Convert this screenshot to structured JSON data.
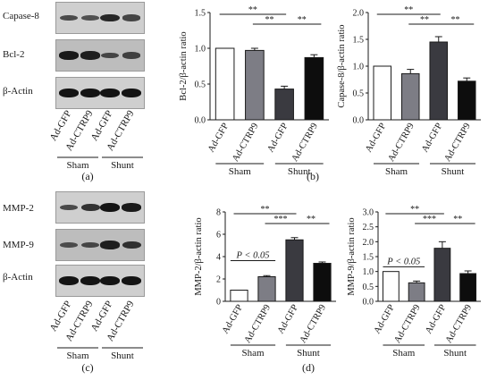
{
  "panel_labels": {
    "a": "(a)",
    "b": "(b)",
    "c": "(c)",
    "d": "(d)"
  },
  "blot_top": {
    "rows": [
      {
        "label": "Capase-8",
        "bands": [
          0.55,
          0.5,
          0.85,
          0.6
        ]
      },
      {
        "label": "Bcl-2",
        "bands": [
          0.95,
          0.9,
          0.55,
          0.6
        ]
      },
      {
        "label": "β-Actin",
        "bands": [
          1.0,
          1.0,
          1.0,
          1.0
        ]
      }
    ],
    "lanes": [
      "Ad-GFP",
      "Ad-CTRP9",
      "Ad-GFP",
      "Ad-CTRP9"
    ],
    "groups": [
      "Sham",
      "Shunt"
    ]
  },
  "blot_bottom": {
    "rows": [
      {
        "label": "MMP-2",
        "bands": [
          0.55,
          0.75,
          1.0,
          0.95
        ]
      },
      {
        "label": "MMP-9",
        "bands": [
          0.5,
          0.55,
          0.9,
          0.75
        ]
      },
      {
        "label": "β-Actin",
        "bands": [
          1.0,
          1.0,
          1.0,
          1.0
        ]
      }
    ],
    "lanes": [
      "Ad-GFP",
      "Ad-CTRP9",
      "Ad-GFP",
      "Ad-CTRP9"
    ],
    "groups": [
      "Sham",
      "Shunt"
    ]
  },
  "chart_data": [
    {
      "type": "bar",
      "panel": "b-left",
      "title": "",
      "ylabel": "Bcl-2/β-actin ratio",
      "categories": [
        "Ad-GFP",
        "Ad-CTRP9",
        "Ad-GFP",
        "Ad-CTRP9"
      ],
      "groups": [
        "Sham",
        "Shunt"
      ],
      "values": [
        1.0,
        0.97,
        0.43,
        0.87
      ],
      "errors": [
        0.0,
        0.03,
        0.04,
        0.04
      ],
      "colors": [
        "#ffffff",
        "#7d7d85",
        "#3a3a40",
        "#0d0d0d"
      ],
      "ylim": [
        0,
        1.5
      ],
      "yticks": [
        "0.0",
        "0.5",
        "1.0",
        "1.5"
      ],
      "significance": [
        {
          "from": 0,
          "to": 2,
          "label": "**"
        },
        {
          "from": 1,
          "to": 2,
          "label": "**"
        },
        {
          "from": 2,
          "to": 3,
          "label": "**"
        }
      ]
    },
    {
      "type": "bar",
      "panel": "b-right",
      "title": "",
      "ylabel": "Capase-8/β-actin ratio",
      "categories": [
        "Ad-GFP",
        "Ad-CTRP9",
        "Ad-GFP",
        "Ad-CTRP9"
      ],
      "groups": [
        "Sham",
        "Shunt"
      ],
      "values": [
        1.0,
        0.86,
        1.45,
        0.72
      ],
      "errors": [
        0.0,
        0.08,
        0.1,
        0.06
      ],
      "colors": [
        "#ffffff",
        "#7d7d85",
        "#3a3a40",
        "#0d0d0d"
      ],
      "ylim": [
        0,
        2.0
      ],
      "yticks": [
        "0.0",
        "0.5",
        "1.0",
        "1.5",
        "2.0"
      ],
      "significance": [
        {
          "from": 0,
          "to": 2,
          "label": "**"
        },
        {
          "from": 1,
          "to": 2,
          "label": "**"
        },
        {
          "from": 2,
          "to": 3,
          "label": "**"
        }
      ]
    },
    {
      "type": "bar",
      "panel": "d-left",
      "title": "",
      "ylabel": "MMP-2/β-actin ratio",
      "categories": [
        "Ad-GFP",
        "Ad-CTRP9",
        "Ad-GFP",
        "Ad-CTRP9"
      ],
      "groups": [
        "Sham",
        "Shunt"
      ],
      "values": [
        1.0,
        2.2,
        5.5,
        3.4
      ],
      "errors": [
        0.0,
        0.1,
        0.2,
        0.12
      ],
      "colors": [
        "#ffffff",
        "#7d7d85",
        "#3a3a40",
        "#0d0d0d"
      ],
      "ylim": [
        0,
        8
      ],
      "yticks": [
        "0",
        "2",
        "4",
        "6",
        "8"
      ],
      "pvalue": {
        "from": 0,
        "to": 1,
        "label": "P < 0.05"
      },
      "significance": [
        {
          "from": 0,
          "to": 2,
          "label": "**"
        },
        {
          "from": 1,
          "to": 2,
          "label": "***"
        },
        {
          "from": 2,
          "to": 3,
          "label": "**"
        }
      ]
    },
    {
      "type": "bar",
      "panel": "d-right",
      "title": "",
      "ylabel": "MMP-9/β-actin ratio",
      "categories": [
        "Ad-GFP",
        "Ad-CTRP9",
        "Ad-GFP",
        "Ad-CTRP9"
      ],
      "groups": [
        "Sham",
        "Shunt"
      ],
      "values": [
        1.0,
        0.62,
        1.78,
        0.93
      ],
      "errors": [
        0.0,
        0.06,
        0.22,
        0.09
      ],
      "colors": [
        "#ffffff",
        "#7d7d85",
        "#3a3a40",
        "#0d0d0d"
      ],
      "ylim": [
        0,
        3.0
      ],
      "yticks": [
        "0.0",
        "0.5",
        "1.0",
        "1.5",
        "2.0",
        "2.5",
        "3.0"
      ],
      "pvalue": {
        "from": 0,
        "to": 1,
        "label": "P < 0.05"
      },
      "significance": [
        {
          "from": 0,
          "to": 2,
          "label": "**"
        },
        {
          "from": 1,
          "to": 2,
          "label": "***"
        },
        {
          "from": 2,
          "to": 3,
          "label": "**"
        }
      ]
    }
  ]
}
